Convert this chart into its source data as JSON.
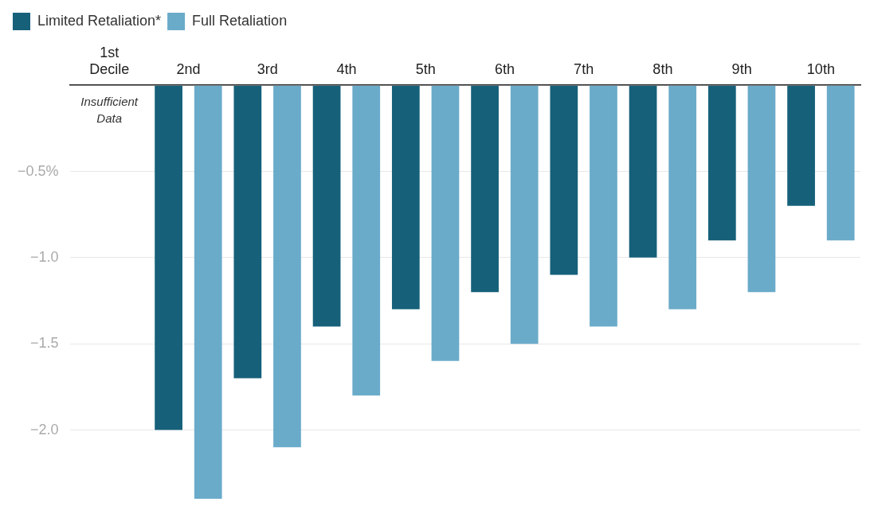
{
  "chart_data": {
    "type": "bar",
    "categories": [
      "1st Decile",
      "2nd",
      "3rd",
      "4th",
      "5th",
      "6th",
      "7th",
      "8th",
      "9th",
      "10th"
    ],
    "series": [
      {
        "name": "Limited Retaliation*",
        "color": "#16607a",
        "values": [
          null,
          -2.0,
          -1.7,
          -1.4,
          -1.3,
          -1.2,
          -1.1,
          -1.0,
          -0.9,
          -0.7
        ]
      },
      {
        "name": "Full Retaliation",
        "color": "#6aabc9",
        "values": [
          null,
          -2.4,
          -2.1,
          -1.8,
          -1.6,
          -1.5,
          -1.4,
          -1.3,
          -1.2,
          -0.9
        ]
      }
    ],
    "ylim": [
      -2.4,
      0
    ],
    "yticks": [
      {
        "value": 0,
        "label": null
      },
      {
        "value": -0.5,
        "label": "−0.5%"
      },
      {
        "value": -1.0,
        "label": "−1.0"
      },
      {
        "value": -1.5,
        "label": "−1.5"
      },
      {
        "value": -2.0,
        "label": "−2.0"
      }
    ],
    "annotations": [
      "Insufficient Data"
    ],
    "grid": "y",
    "legend": "top left"
  }
}
